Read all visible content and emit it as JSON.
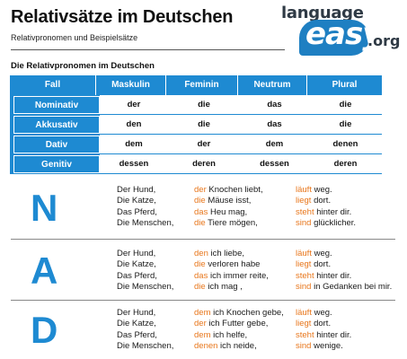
{
  "header": {
    "title": "Relativsätze im Deutschen",
    "subtitle": "Relativpronomen und Beispielsätze"
  },
  "logo": {
    "top": "language",
    "main": "easy",
    "suffix": ".org"
  },
  "section_title": "Die Relativpronomen im Deutschen",
  "table": {
    "headers": [
      "Fall",
      "Maskulin",
      "Feminin",
      "Neutrum",
      "Plural"
    ],
    "rows": [
      {
        "label": "Nominativ",
        "cells": [
          "der",
          "die",
          "das",
          "die"
        ]
      },
      {
        "label": "Akkusativ",
        "cells": [
          "den",
          "die",
          "das",
          "die"
        ]
      },
      {
        "label": "Dativ",
        "cells": [
          "dem",
          "der",
          "dem",
          "denen"
        ]
      },
      {
        "label": "Genitiv",
        "cells": [
          "dessen",
          "deren",
          "dessen",
          "deren"
        ]
      }
    ]
  },
  "cases": [
    {
      "letter": "N",
      "lines": [
        {
          "subject": "Der Hund,",
          "pronoun": "der",
          "rest": " Knochen liebt,",
          "verb": "läuft",
          "tail": " weg."
        },
        {
          "subject": "Die Katze,",
          "pronoun": "die",
          "rest": " Mäuse isst,",
          "verb": "liegt",
          "tail": " dort."
        },
        {
          "subject": "Das Pferd,",
          "pronoun": "das",
          "rest": " Heu mag,",
          "verb": "steht",
          "tail": " hinter dir."
        },
        {
          "subject": "Die Menschen,",
          "pronoun": "die",
          "rest": " Tiere mögen,",
          "verb": "sind",
          "tail": " glücklicher."
        }
      ]
    },
    {
      "letter": "A",
      "lines": [
        {
          "subject": "Der Hund,",
          "pronoun": "den",
          "rest": " ich liebe,",
          "verb": "läuft",
          "tail": " weg."
        },
        {
          "subject": "Die Katze,",
          "pronoun": "die",
          "rest": " verloren habe",
          "verb": "liegt",
          "tail": " dort."
        },
        {
          "subject": "Das Pferd,",
          "pronoun": "das",
          "rest": " ich immer reite,",
          "verb": "steht",
          "tail": " hinter dir."
        },
        {
          "subject": "Die Menschen,",
          "pronoun": "die",
          "rest": " ich mag ,",
          "verb": "sind",
          "tail": " in Gedanken bei mir."
        }
      ]
    },
    {
      "letter": "D",
      "lines": [
        {
          "subject": "Der Hund,",
          "pronoun": "dem",
          "rest": " ich Knochen gebe,",
          "verb": "läuft",
          "tail": " weg."
        },
        {
          "subject": "Die Katze,",
          "pronoun": "der",
          "rest": " ich Futter gebe,",
          "verb": "liegt",
          "tail": " dort."
        },
        {
          "subject": "Das Pferd,",
          "pronoun": "dem",
          "rest": " ich helfe,",
          "verb": "steht",
          "tail": " hinter dir."
        },
        {
          "subject": "Die Menschen,",
          "pronoun": "denen",
          "rest": " ich neide,",
          "verb": "sind",
          "tail": " wenige."
        }
      ]
    }
  ],
  "colors": {
    "accent_blue": "#1e8ad2",
    "accent_orange": "#e8761b",
    "logo_blue": "#1e7fc2"
  }
}
